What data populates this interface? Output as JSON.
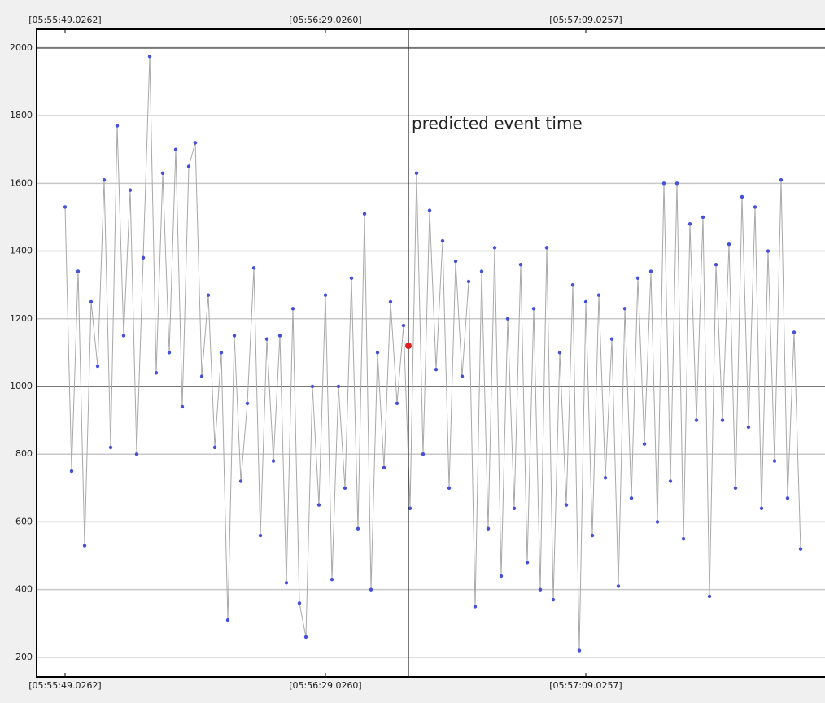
{
  "chart_data": {
    "type": "line",
    "x": [
      0,
      1,
      2,
      3,
      4,
      5,
      6,
      7,
      8,
      9,
      10,
      11,
      12,
      13,
      14,
      15,
      16,
      17,
      18,
      19,
      20,
      21,
      22,
      23,
      24,
      25,
      26,
      27,
      28,
      29,
      30,
      31,
      32,
      33,
      34,
      35,
      36,
      37,
      38,
      39,
      40,
      41,
      42,
      43,
      44,
      45,
      46,
      47,
      48,
      49,
      50,
      51,
      52,
      53,
      54,
      55,
      56,
      57,
      58,
      59,
      60,
      61,
      62,
      63,
      64,
      65,
      66,
      67,
      68,
      69,
      70,
      71,
      72,
      73,
      74,
      75,
      76,
      77,
      78,
      79,
      80,
      81,
      82,
      83,
      84,
      85,
      86,
      87,
      88,
      89,
      90,
      91,
      92,
      93,
      94,
      95,
      96,
      97,
      98,
      99,
      100,
      101,
      102,
      103,
      104,
      105,
      106,
      107,
      108,
      109,
      110,
      111,
      112,
      113
    ],
    "series": [
      {
        "color": "#4450d8",
        "line_color": "#a8a8a8",
        "values": [
          1530,
          750,
          1340,
          530,
          1250,
          1060,
          1610,
          820,
          1770,
          1150,
          1580,
          800,
          1380,
          1975,
          1040,
          1630,
          1100,
          1700,
          940,
          1650,
          1720,
          1030,
          1270,
          820,
          1100,
          310,
          1150,
          720,
          950,
          1350,
          560,
          1140,
          780,
          1150,
          420,
          1230,
          360,
          260,
          1000,
          650,
          1270,
          430,
          1000,
          700,
          1320,
          580,
          1510,
          400,
          1100,
          760,
          1250,
          950,
          1180,
          640,
          1630,
          800,
          1520,
          1050,
          1430,
          700,
          1370,
          1030,
          1310,
          350,
          1340,
          580,
          1410,
          440,
          1200,
          640,
          1360,
          480,
          1230,
          400,
          1410,
          370,
          1100,
          650,
          1300,
          220,
          1250,
          560,
          1270,
          730,
          1140,
          410,
          1230,
          670,
          1320,
          830,
          1340,
          600,
          1600,
          720,
          1600,
          550,
          1480,
          900,
          1500,
          380,
          1360,
          900,
          1420,
          700,
          1560,
          880,
          1530,
          640,
          1400,
          780,
          1610,
          670,
          1160,
          520
        ]
      }
    ],
    "event": {
      "x": 52.75,
      "y": 1120,
      "label": "predicted event time",
      "color": "#e02020"
    },
    "xlim": [
      -4.375,
      116.75
    ],
    "xticks": [
      {
        "value": 0,
        "label": "[05:55:49.0262]"
      },
      {
        "value": 40,
        "label": "[05:56:29.0260]"
      },
      {
        "value": 80,
        "label": "[05:57:09.0257]"
      }
    ],
    "ylim": [
      142,
      2055
    ],
    "yticks": [
      200,
      400,
      600,
      800,
      1000,
      1200,
      1400,
      1600,
      1800,
      2000
    ],
    "grid": true
  }
}
